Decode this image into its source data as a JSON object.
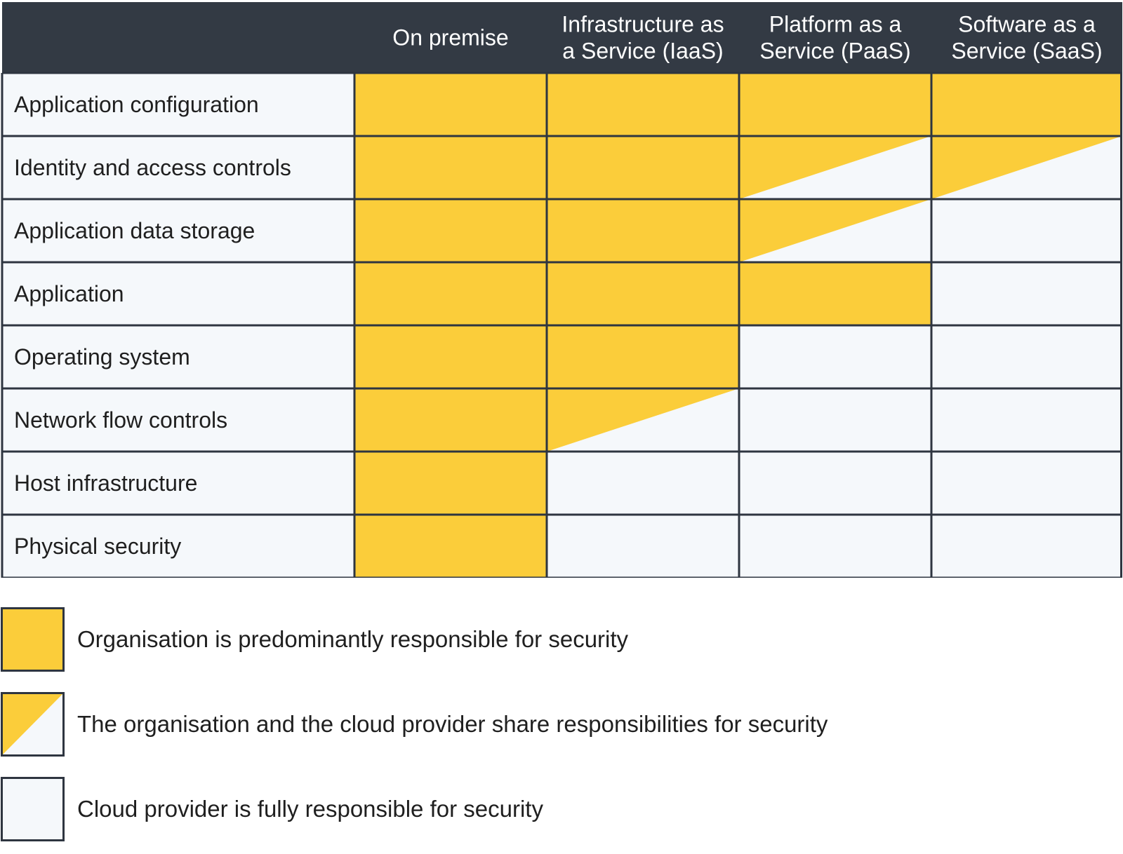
{
  "colors": {
    "header_bg": "#333a44",
    "header_text": "#ffffff",
    "organisation": "#fbcd3a",
    "provider": "#f5f8fb",
    "border": "#2e3540",
    "text": "#1f1f1f"
  },
  "columns": [
    {
      "label_lines": [
        "On premise"
      ]
    },
    {
      "label_lines": [
        "Infrastructure as",
        "a Service (IaaS)"
      ]
    },
    {
      "label_lines": [
        "Platform as a",
        "Service (PaaS)"
      ]
    },
    {
      "label_lines": [
        "Software as a",
        "Service (SaaS)"
      ]
    }
  ],
  "rows": [
    {
      "label": "Application configuration",
      "cells": [
        "organisation",
        "organisation",
        "organisation",
        "organisation"
      ]
    },
    {
      "label": "Identity and access controls",
      "cells": [
        "organisation",
        "organisation",
        "shared",
        "shared"
      ]
    },
    {
      "label": "Application data storage",
      "cells": [
        "organisation",
        "organisation",
        "shared",
        "provider"
      ]
    },
    {
      "label": "Application",
      "cells": [
        "organisation",
        "organisation",
        "organisation",
        "provider"
      ]
    },
    {
      "label": "Operating system",
      "cells": [
        "organisation",
        "organisation",
        "provider",
        "provider"
      ]
    },
    {
      "label": "Network flow controls",
      "cells": [
        "organisation",
        "shared",
        "provider",
        "provider"
      ]
    },
    {
      "label": "Host infrastructure",
      "cells": [
        "organisation",
        "provider",
        "provider",
        "provider"
      ]
    },
    {
      "label": "Physical security",
      "cells": [
        "organisation",
        "provider",
        "provider",
        "provider"
      ]
    }
  ],
  "legend": [
    {
      "type": "organisation",
      "label": "Organisation is predominantly responsible for security"
    },
    {
      "type": "shared",
      "label": "The organisation and the cloud provider share responsibilities for security"
    },
    {
      "type": "provider",
      "label": "Cloud provider is fully responsible for security"
    }
  ]
}
